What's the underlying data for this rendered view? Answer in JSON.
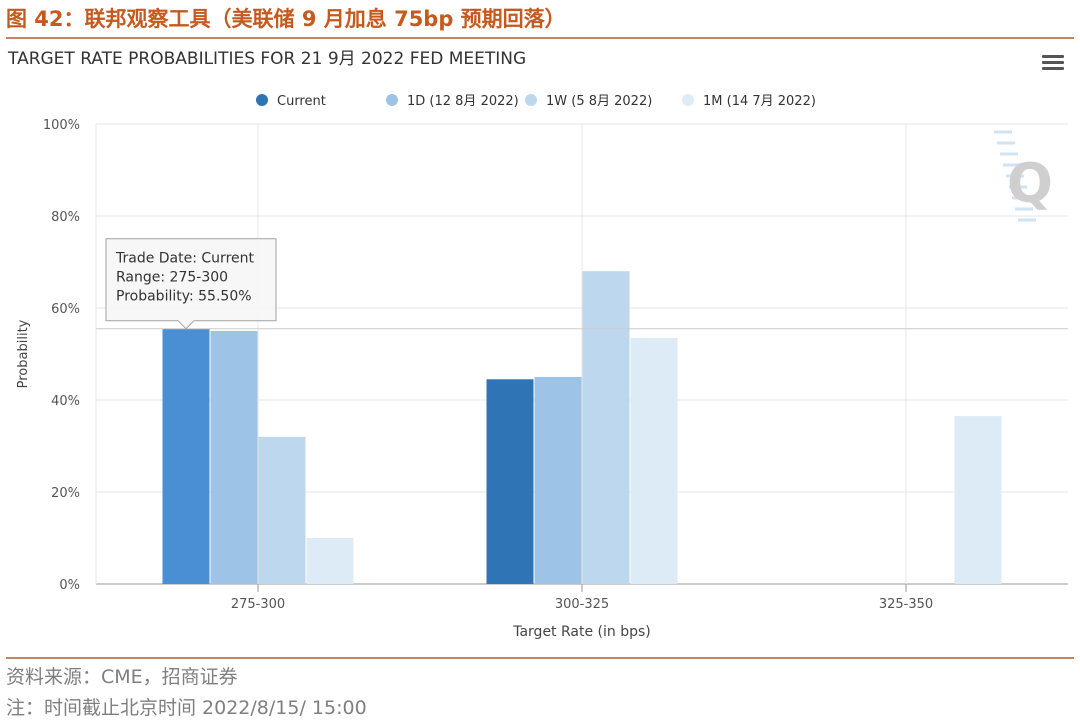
{
  "figure_title": "图 42：联邦观察工具（美联储 9 月加息 75bp 预期回落）",
  "source_text": "资料来源：CME，招商证券",
  "note_text": "注：时间截止北京时间 2022/8/15/ 15:00",
  "menu_icon": "hamburger-menu-icon",
  "colors": {
    "title": "#c65a1e",
    "rule": "#c9835d",
    "series": [
      "#2f75b5",
      "#9dc3e6",
      "#bdd7ee",
      "#ddebf7"
    ],
    "highlight": "#4a8fd4"
  },
  "chart_data": {
    "type": "bar",
    "title": "TARGET RATE PROBABILITIES FOR 21 9月 2022 FED MEETING",
    "xlabel": "Target Rate (in bps)",
    "ylabel": "Probability",
    "categories": [
      "275-300",
      "300-325",
      "325-350"
    ],
    "series": [
      {
        "name": "Current",
        "values": [
          55.5,
          44.5,
          0
        ]
      },
      {
        "name": "1D (12 8月 2022)",
        "values": [
          55.0,
          45.0,
          0
        ]
      },
      {
        "name": "1W (5 8月 2022)",
        "values": [
          32.0,
          68.0,
          0
        ]
      },
      {
        "name": "1M (14 7月 2022)",
        "values": [
          10.0,
          53.5,
          36.5
        ]
      }
    ],
    "ylim": [
      0,
      100
    ],
    "yticks": [
      "0%",
      "20%",
      "40%",
      "60%",
      "80%",
      "100%"
    ],
    "grid": true,
    "legend_position": "top-center",
    "highlighted_point": {
      "series": 0,
      "category": 0
    },
    "tooltip": {
      "lines": [
        "Trade Date: Current",
        "Range: 275-300",
        "Probability: 55.50%"
      ]
    },
    "watermark": "Q"
  }
}
